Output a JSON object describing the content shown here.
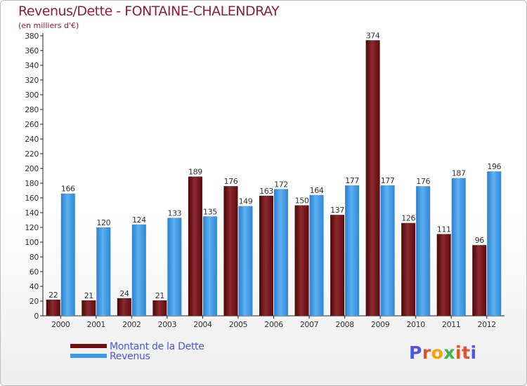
{
  "page": {
    "title": "Revenus/Dette - FONTAINE-CHALENDRAY",
    "subtitle": "(en milliers d'€)"
  },
  "legend": [
    {
      "label": "Montant de la Dette",
      "color": "#6b0f0f"
    },
    {
      "label": "Revenus",
      "color": "#3d9ae6"
    }
  ],
  "logo": {
    "text": "Proxiti",
    "letter_colors": [
      "#4a57e6",
      "#e0542b",
      "#f4a300",
      "#3cb44b",
      "#e0542b",
      "#e0542b",
      "#4a57e6"
    ]
  },
  "chart_data": {
    "type": "bar",
    "title": "Revenus/Dette - FONTAINE-CHALENDRAY",
    "subtitle": "(en milliers d'€)",
    "categories": [
      "2000",
      "2001",
      "2002",
      "2003",
      "2004",
      "2005",
      "2006",
      "2007",
      "2008",
      "2009",
      "2010",
      "2011",
      "2012"
    ],
    "series": [
      {
        "name": "Montant de la Dette",
        "color": "#7a1a1f",
        "values": [
          22,
          21,
          24,
          21,
          189,
          176,
          163,
          150,
          137,
          374,
          126,
          111,
          96
        ]
      },
      {
        "name": "Revenus",
        "color": "#3d9ae6",
        "values": [
          166,
          120,
          124,
          133,
          135,
          149,
          172,
          164,
          177,
          177,
          176,
          187,
          196
        ]
      }
    ],
    "ylim": [
      0,
      380
    ],
    "ytick_step": 20,
    "grid": false,
    "legend_position": "bottom-left"
  }
}
